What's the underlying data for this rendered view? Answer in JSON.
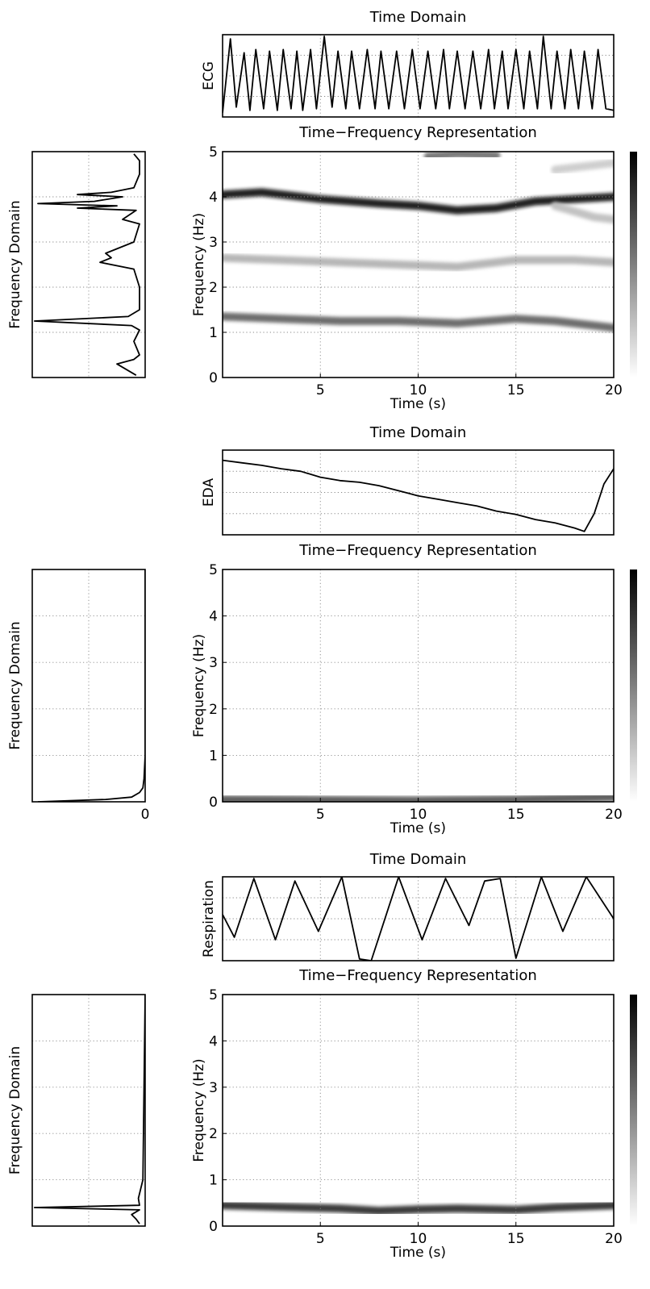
{
  "chart_data": [
    {
      "type": "line",
      "title": "Time Domain",
      "ylabel": "ECG",
      "x": [
        0,
        0.4,
        0.7,
        1.1,
        1.4,
        1.7,
        2.1,
        2.4,
        2.8,
        3.1,
        3.5,
        3.8,
        4.1,
        4.5,
        4.8,
        5.2,
        5.6,
        5.9,
        6.3,
        6.6,
        7.0,
        7.4,
        7.8,
        8.1,
        8.5,
        8.9,
        9.3,
        9.7,
        10.1,
        10.5,
        10.9,
        11.3,
        11.6,
        12.0,
        12.4,
        12.8,
        13.2,
        13.6,
        13.9,
        14.3,
        14.6,
        15.0,
        15.4,
        15.7,
        16.1,
        16.4,
        16.8,
        17.1,
        17.5,
        17.8,
        18.2,
        18.5,
        18.9,
        19.2,
        19.6,
        20
      ],
      "values": [
        0.05,
        0.95,
        0.12,
        0.78,
        0.08,
        0.82,
        0.1,
        0.8,
        0.08,
        0.82,
        0.1,
        0.8,
        0.08,
        0.82,
        0.1,
        0.98,
        0.12,
        0.8,
        0.1,
        0.8,
        0.1,
        0.82,
        0.1,
        0.8,
        0.1,
        0.8,
        0.1,
        0.82,
        0.1,
        0.8,
        0.1,
        0.82,
        0.1,
        0.8,
        0.1,
        0.8,
        0.1,
        0.82,
        0.1,
        0.8,
        0.1,
        0.82,
        0.1,
        0.8,
        0.1,
        0.98,
        0.1,
        0.8,
        0.1,
        0.82,
        0.1,
        0.8,
        0.1,
        0.82,
        0.1,
        0.08
      ],
      "xlim": [
        0,
        20
      ],
      "ylim": [
        0,
        1
      ],
      "grid": true
    },
    {
      "type": "heatmap",
      "title": "Time−Frequency Representation",
      "xlabel": "Time (s)",
      "ylabel": "Frequency (Hz)",
      "xlim": [
        0,
        20
      ],
      "ylim": [
        0,
        5
      ],
      "xticks": [
        "5",
        "10",
        "15",
        "20"
      ],
      "yticks": [
        "0",
        "1",
        "2",
        "3",
        "4",
        "5"
      ],
      "ridges": [
        {
          "points": [
            [
              0,
              4.05
            ],
            [
              2,
              4.1
            ],
            [
              5,
              3.95
            ],
            [
              8,
              3.85
            ],
            [
              10,
              3.8
            ],
            [
              12,
              3.7
            ],
            [
              14,
              3.75
            ],
            [
              16,
              3.9
            ],
            [
              18,
              3.95
            ],
            [
              20,
              4.0
            ]
          ],
          "intensity": 0.9
        },
        {
          "points": [
            [
              0,
              2.65
            ],
            [
              3,
              2.6
            ],
            [
              6,
              2.55
            ],
            [
              9,
              2.5
            ],
            [
              12,
              2.45
            ],
            [
              15,
              2.6
            ],
            [
              18,
              2.6
            ],
            [
              20,
              2.55
            ]
          ],
          "intensity": 0.3
        },
        {
          "points": [
            [
              0,
              1.35
            ],
            [
              3,
              1.3
            ],
            [
              6,
              1.25
            ],
            [
              9,
              1.25
            ],
            [
              12,
              1.2
            ],
            [
              15,
              1.3
            ],
            [
              17,
              1.25
            ],
            [
              20,
              1.1
            ]
          ],
          "intensity": 0.6
        },
        {
          "points": [
            [
              10.5,
              4.9
            ],
            [
              12,
              4.95
            ],
            [
              14,
              4.92
            ]
          ],
          "intensity": 0.55
        },
        {
          "points": [
            [
              17,
              4.6
            ],
            [
              19,
              4.7
            ],
            [
              20,
              4.75
            ]
          ],
          "intensity": 0.2
        },
        {
          "points": [
            [
              17,
              3.8
            ],
            [
              19,
              3.55
            ],
            [
              20,
              3.5
            ]
          ],
          "intensity": 0.25
        }
      ],
      "grid": true,
      "colorbar": "vertical grayscale"
    },
    {
      "type": "line",
      "ylabel": "Frequency Domain",
      "orientation": "vertical",
      "spectrum": [
        [
          0.05,
          0.08
        ],
        [
          0.3,
          0.25
        ],
        [
          0.4,
          0.1
        ],
        [
          0.5,
          0.05
        ],
        [
          0.8,
          0.1
        ],
        [
          1.05,
          0.05
        ],
        [
          1.15,
          0.12
        ],
        [
          1.25,
          0.98
        ],
        [
          1.35,
          0.15
        ],
        [
          1.5,
          0.05
        ],
        [
          2.0,
          0.05
        ],
        [
          2.4,
          0.1
        ],
        [
          2.55,
          0.4
        ],
        [
          2.65,
          0.3
        ],
        [
          2.75,
          0.35
        ],
        [
          3.0,
          0.1
        ],
        [
          3.4,
          0.05
        ],
        [
          3.5,
          0.2
        ],
        [
          3.7,
          0.08
        ],
        [
          3.75,
          0.6
        ],
        [
          3.8,
          0.25
        ],
        [
          3.85,
          0.95
        ],
        [
          3.9,
          0.45
        ],
        [
          4.0,
          0.2
        ],
        [
          4.05,
          0.6
        ],
        [
          4.1,
          0.3
        ],
        [
          4.2,
          0.1
        ],
        [
          4.5,
          0.05
        ],
        [
          4.8,
          0.05
        ],
        [
          4.95,
          0.1
        ]
      ],
      "ylim": [
        0,
        5
      ],
      "grid": true
    },
    {
      "type": "line",
      "title": "Time Domain",
      "ylabel": "EDA",
      "x": [
        0,
        1,
        2,
        3,
        4,
        5,
        6,
        7,
        8,
        9,
        10,
        11,
        12,
        13,
        14,
        15,
        16,
        17,
        18,
        18.5,
        19,
        19.5,
        20
      ],
      "values": [
        0.88,
        0.85,
        0.82,
        0.78,
        0.75,
        0.68,
        0.64,
        0.62,
        0.58,
        0.52,
        0.46,
        0.42,
        0.38,
        0.34,
        0.28,
        0.24,
        0.18,
        0.14,
        0.08,
        0.04,
        0.25,
        0.6,
        0.78
      ],
      "xlim": [
        0,
        20
      ],
      "ylim": [
        0,
        1
      ],
      "grid": true
    },
    {
      "type": "heatmap",
      "title": "Time−Frequency Representation",
      "xlabel": "Time (s)",
      "ylabel": "Frequency (Hz)",
      "xlim": [
        0,
        20
      ],
      "ylim": [
        0,
        5
      ],
      "xticks": [
        "5",
        "10",
        "15",
        "20"
      ],
      "yticks": [
        "0",
        "1",
        "2",
        "3",
        "4",
        "5"
      ],
      "ridges": [
        {
          "points": [
            [
              0,
              0.05
            ],
            [
              5,
              0.04
            ],
            [
              10,
              0.03
            ],
            [
              15,
              0.05
            ],
            [
              18,
              0.08
            ],
            [
              20,
              0.1
            ]
          ],
          "intensity": 0.65
        }
      ],
      "grid": true,
      "colorbar": "vertical grayscale"
    },
    {
      "type": "line",
      "ylabel": "Frequency Domain",
      "orientation": "vertical",
      "xtick": "0",
      "spectrum": [
        [
          0.0,
          0.95
        ],
        [
          0.05,
          0.35
        ],
        [
          0.1,
          0.12
        ],
        [
          0.2,
          0.05
        ],
        [
          0.3,
          0.02
        ],
        [
          0.5,
          0.01
        ],
        [
          1.0,
          0.0
        ],
        [
          5.0,
          0.0
        ]
      ],
      "ylim": [
        0,
        5
      ],
      "grid": true
    },
    {
      "type": "line",
      "title": "Time Domain",
      "ylabel": "Respiration",
      "x": [
        0,
        0.6,
        1.6,
        2.7,
        3.7,
        4.9,
        6.1,
        7.0,
        7.6,
        9.0,
        10.2,
        11.4,
        12.6,
        13.4,
        14.2,
        15.0,
        16.3,
        17.4,
        18.6,
        20
      ],
      "values": [
        0.55,
        0.28,
        0.98,
        0.25,
        0.95,
        0.35,
        1.0,
        0.02,
        0.0,
        1.0,
        0.25,
        0.98,
        0.42,
        0.95,
        0.98,
        0.03,
        1.0,
        0.35,
        1.0,
        0.5
      ],
      "xlim": [
        0,
        20
      ],
      "ylim": [
        0,
        1
      ],
      "grid": true
    },
    {
      "type": "heatmap",
      "title": "Time−Frequency Representation",
      "xlabel": "Time (s)",
      "ylabel": "Frequency (Hz)",
      "xlim": [
        0,
        20
      ],
      "ylim": [
        0,
        5
      ],
      "xticks": [
        "5",
        "10",
        "15",
        "20"
      ],
      "yticks": [
        "0",
        "1",
        "2",
        "3",
        "4",
        "5"
      ],
      "ridges": [
        {
          "points": [
            [
              0,
              0.45
            ],
            [
              4,
              0.4
            ],
            [
              6,
              0.38
            ],
            [
              8,
              0.33
            ],
            [
              10,
              0.36
            ],
            [
              12,
              0.38
            ],
            [
              15,
              0.35
            ],
            [
              17,
              0.4
            ],
            [
              20,
              0.45
            ]
          ],
          "intensity": 0.8
        }
      ],
      "grid": true,
      "colorbar": "vertical grayscale"
    },
    {
      "type": "line",
      "ylabel": "Frequency Domain",
      "orientation": "vertical",
      "spectrum": [
        [
          0.05,
          0.05
        ],
        [
          0.15,
          0.08
        ],
        [
          0.25,
          0.12
        ],
        [
          0.35,
          0.05
        ],
        [
          0.4,
          0.98
        ],
        [
          0.45,
          0.05
        ],
        [
          0.6,
          0.06
        ],
        [
          0.8,
          0.04
        ],
        [
          1.0,
          0.02
        ],
        [
          5.0,
          0.0
        ]
      ],
      "ylim": [
        0,
        5
      ],
      "grid": true
    }
  ]
}
